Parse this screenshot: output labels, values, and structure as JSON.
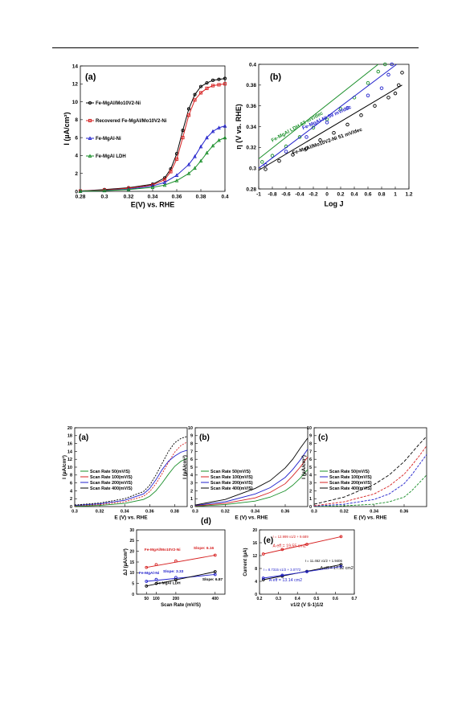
{
  "chart_data": [
    {
      "panel": "(a)",
      "type": "line",
      "xlabel": "E(V) vs. RHE",
      "ylabel": "I (µA/cm²)",
      "xlim": [
        0.28,
        0.4
      ],
      "ylim": [
        0,
        14
      ],
      "xticks": [
        0.28,
        0.3,
        0.32,
        0.34,
        0.36,
        0.38,
        0.4
      ],
      "yticks": [
        0,
        2,
        4,
        6,
        8,
        10,
        12,
        14
      ],
      "legend_position": "top-left",
      "series": [
        {
          "name": "Fe-MgAl/Mo10V2-Ni",
          "color": "#000000",
          "marker": "circle",
          "x": [
            0.28,
            0.3,
            0.32,
            0.34,
            0.35,
            0.355,
            0.36,
            0.365,
            0.37,
            0.375,
            0.38,
            0.385,
            0.39,
            0.395,
            0.4
          ],
          "y": [
            0.05,
            0.2,
            0.4,
            0.8,
            1.5,
            2.5,
            4.2,
            6.8,
            9.2,
            10.8,
            11.7,
            12.1,
            12.4,
            12.5,
            12.6
          ]
        },
        {
          "name": "Recovered Fe-MgAl/Mo10V2-Ni",
          "color": "#d62020",
          "marker": "square",
          "x": [
            0.28,
            0.3,
            0.32,
            0.34,
            0.35,
            0.355,
            0.36,
            0.365,
            0.37,
            0.375,
            0.38,
            0.385,
            0.39,
            0.395,
            0.4
          ],
          "y": [
            0.04,
            0.15,
            0.35,
            0.7,
            1.3,
            2.2,
            3.6,
            6.0,
            8.5,
            10.2,
            11.0,
            11.5,
            11.8,
            11.9,
            12.0
          ]
        },
        {
          "name": "Fe-MgAl-Ni",
          "color": "#2222cc",
          "marker": "triangle",
          "x": [
            0.28,
            0.3,
            0.32,
            0.34,
            0.35,
            0.36,
            0.37,
            0.375,
            0.38,
            0.385,
            0.39,
            0.395,
            0.4
          ],
          "y": [
            0.03,
            0.1,
            0.25,
            0.6,
            1.0,
            1.8,
            3.0,
            3.9,
            5.0,
            6.0,
            6.7,
            7.1,
            7.3
          ]
        },
        {
          "name": "Fe-MgAl LDH",
          "color": "#1a8f2a",
          "marker": "triangle",
          "x": [
            0.28,
            0.3,
            0.32,
            0.34,
            0.35,
            0.36,
            0.37,
            0.375,
            0.38,
            0.385,
            0.39,
            0.395,
            0.4
          ],
          "y": [
            0.02,
            0.08,
            0.2,
            0.45,
            0.7,
            1.2,
            2.0,
            2.6,
            3.4,
            4.3,
            5.1,
            5.7,
            6.0
          ]
        }
      ]
    },
    {
      "panel": "(b)",
      "type": "line",
      "xlabel": "Log J",
      "ylabel": "η (V vs. RHE)",
      "xlim": [
        -1,
        1.2
      ],
      "ylim": [
        0.28,
        0.4
      ],
      "xticks": [
        -1,
        -0.8,
        -0.6,
        -0.4,
        -0.2,
        0,
        0.2,
        0.4,
        0.6,
        0.8,
        1,
        1.2
      ],
      "yticks": [
        0.28,
        0.3,
        0.32,
        0.34,
        0.36,
        0.38,
        0.4
      ],
      "annotations": [
        "Fe-MgAl LDH   63 mV/dec",
        "Fe-MgAl-Ni   59 mV/dec",
        "Fe-MgAl/Mo10V2-Ni   51 mV/dec"
      ],
      "series": [
        {
          "name": "Fe-MgAl LDH",
          "color": "#1a8f2a",
          "fit": [
            [
              -1,
              0.309
            ],
            [
              0.75,
              0.4
            ]
          ],
          "x": [
            -0.95,
            -0.8,
            -0.6,
            -0.4,
            -0.2,
            0,
            0.2,
            0.4,
            0.6,
            0.75,
            0.85
          ],
          "y": [
            0.306,
            0.312,
            0.321,
            0.33,
            0.339,
            0.347,
            0.357,
            0.368,
            0.382,
            0.393,
            0.4
          ]
        },
        {
          "name": "Fe-MgAl-Ni",
          "color": "#2222cc",
          "fit": [
            [
              -1,
              0.3
            ],
            [
              1.02,
              0.4
            ]
          ],
          "x": [
            -0.9,
            -0.6,
            -0.3,
            0,
            0.3,
            0.6,
            0.8,
            0.9,
            0.95
          ],
          "y": [
            0.303,
            0.316,
            0.33,
            0.344,
            0.358,
            0.37,
            0.377,
            0.39,
            0.4
          ]
        },
        {
          "name": "Fe-MgAl/Mo10V2-Ni",
          "color": "#000000",
          "fit": [
            [
              -1,
              0.298
            ],
            [
              1.1,
              0.38
            ]
          ],
          "x": [
            -0.9,
            -0.7,
            -0.5,
            -0.3,
            -0.1,
            0.1,
            0.3,
            0.5,
            0.7,
            0.9,
            1.0,
            1.05,
            1.1
          ],
          "y": [
            0.299,
            0.307,
            0.313,
            0.319,
            0.327,
            0.334,
            0.342,
            0.351,
            0.36,
            0.368,
            0.372,
            0.38,
            0.392
          ]
        }
      ]
    },
    {
      "panel": "(a)",
      "type": "line",
      "xlabel": "E (V) vs. RHE",
      "ylabel": "I (µA/cm²)",
      "xlim": [
        0.3,
        0.39
      ],
      "ylim": [
        0,
        20
      ],
      "xticks": [
        0.3,
        0.32,
        0.34,
        0.36,
        0.38
      ],
      "yticks": [
        0,
        2,
        4,
        6,
        8,
        10,
        12,
        14,
        16,
        18,
        20
      ],
      "series": [
        {
          "name": "Scan Rate 50(mV/S)",
          "color": "#1a8f2a",
          "x": [
            0.3,
            0.32,
            0.34,
            0.355,
            0.36,
            0.365,
            0.37,
            0.375,
            0.38,
            0.385,
            0.39
          ],
          "y": [
            0.1,
            0.3,
            0.8,
            1.8,
            2.6,
            4.0,
            6.0,
            8.2,
            10.2,
            11.5,
            12.3
          ]
        },
        {
          "name": "Scan Rate 100(mV/S)",
          "color": "#d62020",
          "x": [
            0.3,
            0.32,
            0.34,
            0.355,
            0.36,
            0.365,
            0.37,
            0.375,
            0.38,
            0.385,
            0.39
          ],
          "y": [
            0.2,
            0.5,
            1.2,
            2.6,
            3.8,
            5.8,
            8.4,
            11.2,
            13.8,
            15.5,
            16.4
          ]
        },
        {
          "name": "Scan Rate 200(mV/S)",
          "color": "#2222cc",
          "x": [
            0.3,
            0.32,
            0.34,
            0.355,
            0.36,
            0.365,
            0.37,
            0.375,
            0.38,
            0.385,
            0.39
          ],
          "y": [
            0.3,
            0.7,
            1.6,
            3.2,
            4.6,
            6.8,
            9.4,
            11.5,
            12.8,
            13.8,
            14.3
          ]
        },
        {
          "name": "Scan Rate 400(mV/S)",
          "color": "#000000",
          "x": [
            0.3,
            0.32,
            0.34,
            0.355,
            0.36,
            0.365,
            0.37,
            0.375,
            0.38,
            0.385,
            0.39
          ],
          "y": [
            0.4,
            0.9,
            2.0,
            3.8,
            5.4,
            8.0,
            11.0,
            14.0,
            16.2,
            17.3,
            17.8
          ]
        }
      ]
    },
    {
      "panel": "(b)",
      "type": "line",
      "xlabel": "E (V) vs. RHE",
      "ylabel": "I (µA/cm²)",
      "xlim": [
        0.3,
        0.375
      ],
      "ylim": [
        0,
        10
      ],
      "xticks": [
        0.3,
        0.32,
        0.34,
        0.36
      ],
      "yticks": [
        0,
        1,
        2,
        3,
        4,
        5,
        6,
        7,
        8,
        9,
        10
      ],
      "series": [
        {
          "name": "Scan Rate 50(mV/S)",
          "color": "#1a8f2a",
          "x": [
            0.3,
            0.32,
            0.34,
            0.35,
            0.36,
            0.365,
            0.37,
            0.375
          ],
          "y": [
            0.05,
            0.25,
            0.7,
            1.2,
            2.0,
            2.7,
            3.6,
            4.7
          ]
        },
        {
          "name": "Scan Rate 100(mV/S)",
          "color": "#d62020",
          "x": [
            0.3,
            0.32,
            0.34,
            0.35,
            0.36,
            0.365,
            0.37,
            0.375
          ],
          "y": [
            0.1,
            0.4,
            1.1,
            1.8,
            2.9,
            3.9,
            5.0,
            6.3
          ]
        },
        {
          "name": "Scan Rate 200(mV/S)",
          "color": "#2222cc",
          "x": [
            0.3,
            0.32,
            0.34,
            0.35,
            0.36,
            0.365,
            0.37,
            0.375
          ],
          "y": [
            0.15,
            0.6,
            1.6,
            2.4,
            3.7,
            4.7,
            5.9,
            7.3
          ]
        },
        {
          "name": "Scan Rate 400(mV/S)",
          "color": "#000000",
          "x": [
            0.3,
            0.32,
            0.34,
            0.35,
            0.36,
            0.365,
            0.37,
            0.375
          ],
          "y": [
            0.2,
            0.9,
            2.3,
            3.3,
            4.9,
            6.0,
            7.4,
            8.7
          ]
        }
      ]
    },
    {
      "panel": "(c)",
      "type": "line",
      "xlabel": "E (V) vs. RHE",
      "ylabel": "I (µA/cm²)",
      "xlim": [
        0.3,
        0.375
      ],
      "ylim": [
        0,
        10
      ],
      "xticks": [
        0.3,
        0.32,
        0.34,
        0.36
      ],
      "yticks": [
        0,
        1,
        2,
        3,
        4,
        5,
        6,
        7,
        8,
        9,
        10
      ],
      "series": [
        {
          "name": "Scan Rate 50(mV/S)",
          "color": "#1a8f2a",
          "x": [
            0.3,
            0.32,
            0.34,
            0.35,
            0.36,
            0.365,
            0.37,
            0.375
          ],
          "y": [
            0.02,
            0.1,
            0.3,
            0.6,
            1.2,
            2.0,
            3.0,
            4.0
          ]
        },
        {
          "name": "Scan Rate 100(mV/S)",
          "color": "#2222cc",
          "x": [
            0.3,
            0.32,
            0.34,
            0.35,
            0.36,
            0.365,
            0.37,
            0.375
          ],
          "y": [
            0.05,
            0.3,
            0.9,
            1.6,
            2.9,
            4.0,
            5.3,
            6.6
          ]
        },
        {
          "name": "Scan Rate 200(mV/S)",
          "color": "#d62020",
          "x": [
            0.3,
            0.32,
            0.34,
            0.35,
            0.36,
            0.365,
            0.37,
            0.375
          ],
          "y": [
            0.1,
            0.6,
            1.6,
            2.6,
            4.1,
            5.2,
            6.4,
            7.7
          ]
        },
        {
          "name": "Scan Rate 400(mV/S)",
          "color": "#000000",
          "x": [
            0.3,
            0.32,
            0.34,
            0.35,
            0.36,
            0.365,
            0.37,
            0.375
          ],
          "y": [
            0.3,
            1.2,
            2.8,
            4.0,
            5.7,
            6.8,
            7.9,
            8.9
          ]
        }
      ]
    },
    {
      "panel": "(d)",
      "type": "scatter",
      "xlabel": "Scan Rate (mV/S)",
      "ylabel": "ΔJ (µA/cm²)",
      "xlim": [
        0,
        450
      ],
      "ylim": [
        0,
        30
      ],
      "xticks": [
        50,
        100,
        200,
        400
      ],
      "yticks": [
        0,
        5,
        10,
        15,
        20,
        25,
        30
      ],
      "series": [
        {
          "name": "Fe-MgAl/Mo10V2-Ni",
          "color": "#d62020",
          "slope": "Slope: 6.16",
          "x": [
            50,
            100,
            200,
            400
          ],
          "y": [
            12.5,
            13.8,
            15.5,
            18.2
          ]
        },
        {
          "name": "Fe-MgAl-Ni",
          "color": "#2222cc",
          "slope": "Slope: 3.33",
          "x": [
            50,
            100,
            200,
            400
          ],
          "y": [
            6.0,
            6.9,
            7.8,
            9.2
          ]
        },
        {
          "name": "Fe-MgAl LDH",
          "color": "#000000",
          "slope": "Slope: 6.87",
          "x": [
            50,
            100,
            200,
            400
          ],
          "y": [
            3.8,
            5.0,
            6.7,
            10.5
          ]
        }
      ]
    },
    {
      "panel": "(e)",
      "type": "scatter",
      "xlabel": "ν1/2 (V S-1)1/2",
      "ylabel": "Current (µA)",
      "xlim": [
        0.2,
        0.7
      ],
      "ylim": [
        0,
        20
      ],
      "xticks": [
        0.2,
        0.3,
        0.4,
        0.5,
        0.6,
        0.7
      ],
      "yticks": [
        0,
        4,
        8,
        12,
        16,
        20
      ],
      "annotations": [
        {
          "eq": "I = 12.999 ν1/2 + 9.689",
          "area": "A eff = 19.55 cm2",
          "color": "#d62020"
        },
        {
          "eq": "I = 11.462 ν1/2 + 1.9406",
          "area": "A eff = 17.32 cm2",
          "color": "#000000"
        },
        {
          "eq": "I = 8.7315 ν1/2 + 3.0772",
          "area": "A eff = 13.14 cm2",
          "color": "#2222cc"
        }
      ],
      "series": [
        {
          "color": "#d62020",
          "x": [
            0.22,
            0.32,
            0.45,
            0.63
          ],
          "y": [
            12.5,
            13.9,
            15.5,
            17.9
          ]
        },
        {
          "color": "#000000",
          "x": [
            0.22,
            0.32,
            0.45,
            0.63
          ],
          "y": [
            4.5,
            5.6,
            7.1,
            9.2
          ]
        },
        {
          "color": "#2222cc",
          "x": [
            0.22,
            0.32,
            0.45,
            0.63
          ],
          "y": [
            5.0,
            5.9,
            7.0,
            8.6
          ]
        }
      ]
    }
  ]
}
